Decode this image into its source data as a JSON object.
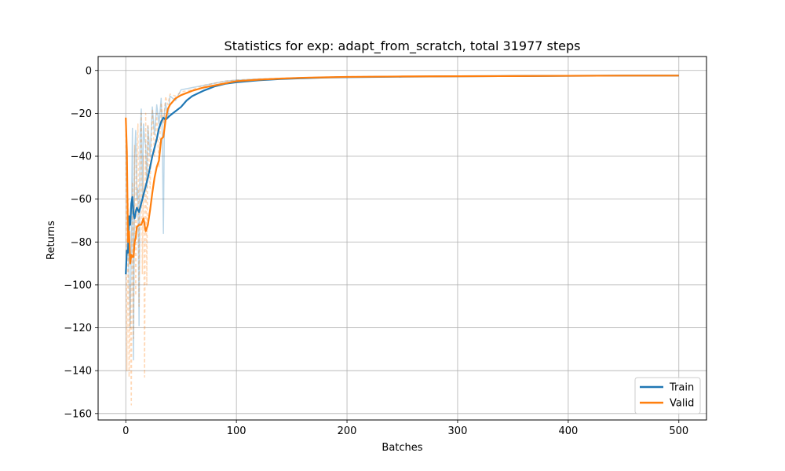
{
  "chart_data": {
    "type": "line",
    "title": "Statistics for exp: adapt_from_scratch, total 31977 steps",
    "xlabel": "Batches",
    "ylabel": "Returns",
    "xlim": [
      -25,
      525
    ],
    "ylim": [
      -163,
      6.5
    ],
    "xticks": [
      0,
      100,
      200,
      300,
      400,
      500
    ],
    "yticks": [
      0,
      -20,
      -40,
      -60,
      -80,
      -100,
      -120,
      -140,
      -160
    ],
    "grid": true,
    "legend_position": "lower-right",
    "series": [
      {
        "name": "Train",
        "color": "#1f77b4",
        "smoothed": {
          "x": [
            0,
            1,
            2,
            3,
            4,
            5,
            6,
            7,
            8,
            9,
            10,
            12,
            14,
            16,
            18,
            20,
            22,
            24,
            26,
            28,
            30,
            32,
            34,
            36,
            38,
            40,
            45,
            50,
            55,
            60,
            70,
            80,
            90,
            100,
            120,
            140,
            160,
            180,
            200,
            250,
            300,
            350,
            400,
            450,
            500
          ],
          "y": [
            -95,
            -84,
            -85,
            -68,
            -72,
            -62,
            -59,
            -67,
            -69,
            -66,
            -64,
            -66,
            -62,
            -58,
            -54,
            -50,
            -45,
            -40,
            -36,
            -32,
            -27,
            -24,
            -22,
            -23,
            -22,
            -21,
            -19,
            -17,
            -14,
            -12,
            -9.5,
            -7.5,
            -6.2,
            -5.5,
            -4.6,
            -4,
            -3.6,
            -3.3,
            -3.1,
            -2.9,
            -2.7,
            -2.6,
            -2.5,
            -2.4,
            -2.4
          ]
        },
        "raw": {
          "x": [
            0,
            2,
            4,
            5,
            6,
            7,
            8,
            9,
            10,
            11,
            12,
            13,
            14,
            15,
            16,
            17,
            18,
            19,
            20,
            22,
            24,
            26,
            28,
            30,
            32,
            33,
            34,
            35,
            36,
            38,
            40,
            45,
            50,
            60,
            70,
            80,
            90,
            100,
            120,
            140,
            160,
            180,
            200,
            250,
            300,
            350,
            400,
            450,
            500
          ],
          "y": [
            -95,
            -75,
            -120,
            -80,
            -27,
            -135,
            -40,
            -28,
            -60,
            -55,
            -119,
            -30,
            -18,
            -60,
            -25,
            -32,
            -35,
            -55,
            -26,
            -40,
            -17,
            -30,
            -16,
            -25,
            -13,
            -30,
            -76,
            -20,
            -15,
            -22,
            -12,
            -14,
            -9,
            -8,
            -7,
            -6,
            -5,
            -4.5,
            -4,
            -3.8,
            -3.4,
            -3.2,
            -3,
            -2.8,
            -2.7,
            -2.6,
            -2.5,
            -2.4,
            -2.3
          ]
        }
      },
      {
        "name": "Valid",
        "color": "#ff7f0e",
        "smoothed": {
          "x": [
            0,
            1,
            2,
            3,
            4,
            5,
            6,
            7,
            8,
            9,
            10,
            12,
            14,
            16,
            18,
            20,
            22,
            24,
            26,
            28,
            30,
            32,
            34,
            36,
            38,
            40,
            45,
            50,
            55,
            60,
            70,
            80,
            90,
            100,
            120,
            140,
            160,
            180,
            200,
            250,
            300,
            350,
            400,
            450,
            500
          ],
          "y": [
            -22,
            -38,
            -80,
            -75,
            -90,
            -86,
            -87,
            -87,
            -80,
            -78,
            -73,
            -72,
            -72,
            -69,
            -75,
            -72,
            -65,
            -57,
            -50,
            -45,
            -42,
            -32,
            -31,
            -23,
            -18,
            -16,
            -13,
            -11.5,
            -10.5,
            -9.5,
            -8,
            -7,
            -6,
            -5,
            -4.3,
            -3.8,
            -3.4,
            -3.2,
            -3,
            -2.8,
            -2.7,
            -2.6,
            -2.5,
            -2.4,
            -2.4
          ]
        },
        "raw": {
          "x": [
            0,
            1,
            2,
            3,
            4,
            5,
            6,
            7,
            8,
            9,
            10,
            11,
            12,
            13,
            14,
            15,
            16,
            17,
            18,
            19,
            20,
            22,
            24,
            26,
            28,
            30,
            32,
            34,
            36,
            38,
            40,
            45,
            50,
            60,
            70,
            80,
            90,
            100,
            120,
            140,
            160,
            180,
            200,
            250,
            300,
            350,
            400,
            450,
            500
          ],
          "y": [
            -22,
            -140,
            -60,
            -143,
            -100,
            -156,
            -52,
            -125,
            -35,
            -105,
            -45,
            -25,
            -110,
            -40,
            -20,
            -95,
            -40,
            -143,
            -20,
            -100,
            -25,
            -55,
            -18,
            -40,
            -20,
            -45,
            -15,
            -25,
            -12,
            -16,
            -11,
            -12,
            -10,
            -9,
            -7,
            -6,
            -5,
            -4.5,
            -4,
            -3.6,
            -3.3,
            -3.1,
            -2.9,
            -2.8,
            -2.6,
            -2.6,
            -2.5,
            -2.4,
            -2.3
          ]
        }
      }
    ]
  }
}
